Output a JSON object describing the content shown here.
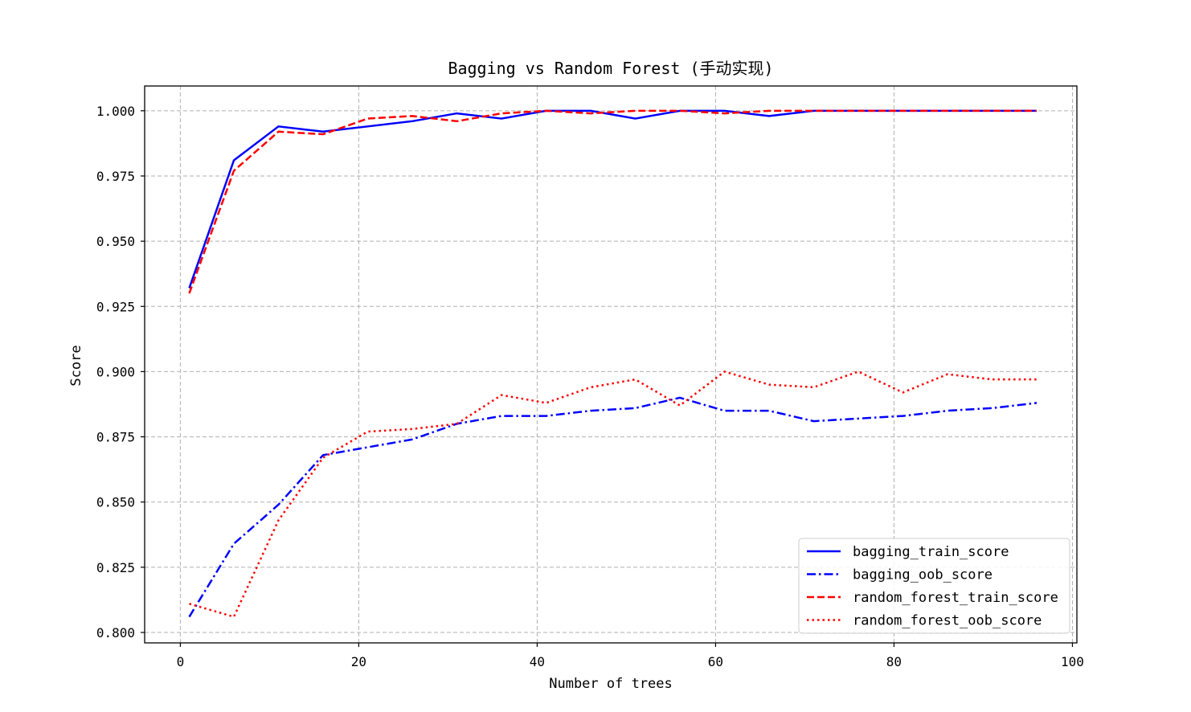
{
  "chart_data": {
    "type": "line",
    "title": "Bagging vs Random Forest (手动实现)",
    "xlabel": "Number of trees",
    "ylabel": "Score",
    "xlim": [
      -4,
      100.5
    ],
    "ylim": [
      0.796,
      1.0095
    ],
    "xticks": [
      0,
      20,
      40,
      60,
      80,
      100
    ],
    "yticks": [
      0.8,
      0.825,
      0.85,
      0.875,
      0.9,
      0.925,
      0.95,
      0.975,
      1.0
    ],
    "xtick_labels": [
      "0",
      "20",
      "40",
      "60",
      "80",
      "100"
    ],
    "ytick_labels": [
      "0.800",
      "0.825",
      "0.850",
      "0.875",
      "0.900",
      "0.925",
      "0.950",
      "0.975",
      "1.000"
    ],
    "grid": true,
    "legend_position": "lower-right",
    "x": [
      1,
      6,
      11,
      16,
      21,
      26,
      31,
      36,
      41,
      46,
      51,
      56,
      61,
      66,
      71,
      76,
      81,
      86,
      91,
      96
    ],
    "series": [
      {
        "name": "bagging_train_score",
        "color": "#0000ff",
        "style": "solid",
        "values": [
          0.932,
          0.981,
          0.994,
          0.992,
          0.994,
          0.996,
          0.999,
          0.997,
          1.0,
          1.0,
          0.997,
          1.0,
          1.0,
          0.998,
          1.0,
          1.0,
          1.0,
          1.0,
          1.0,
          1.0
        ]
      },
      {
        "name": "bagging_oob_score",
        "color": "#0000ff",
        "style": "dashdot",
        "values": [
          0.806,
          0.834,
          0.849,
          0.868,
          0.871,
          0.874,
          0.88,
          0.883,
          0.883,
          0.885,
          0.886,
          0.89,
          0.885,
          0.885,
          0.881,
          0.882,
          0.883,
          0.885,
          0.886,
          0.888
        ]
      },
      {
        "name": "random_forest_train_score",
        "color": "#ff0000",
        "style": "dashed",
        "values": [
          0.93,
          0.977,
          0.992,
          0.991,
          0.997,
          0.998,
          0.996,
          0.999,
          1.0,
          0.999,
          1.0,
          1.0,
          0.999,
          1.0,
          1.0,
          1.0,
          1.0,
          1.0,
          1.0,
          1.0
        ]
      },
      {
        "name": "random_forest_oob_score",
        "color": "#ff0000",
        "style": "dotted",
        "values": [
          0.811,
          0.806,
          0.843,
          0.867,
          0.877,
          0.878,
          0.88,
          0.891,
          0.888,
          0.894,
          0.897,
          0.887,
          0.9,
          0.895,
          0.894,
          0.9,
          0.892,
          0.899,
          0.897,
          0.897
        ]
      }
    ]
  }
}
